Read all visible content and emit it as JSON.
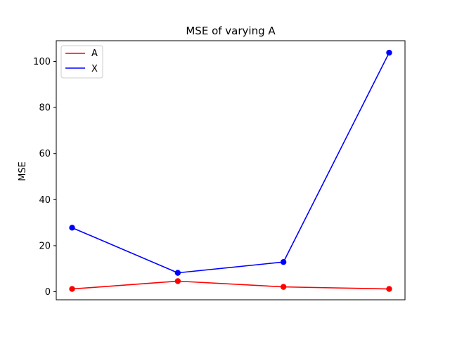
{
  "chart_data": {
    "type": "line",
    "title": "MSE of varying A",
    "xlabel": "",
    "ylabel": "MSE",
    "x": [
      0,
      1,
      2,
      3
    ],
    "xlim": [
      -0.15,
      3.15
    ],
    "ylim": [
      -3.5,
      109
    ],
    "yticks": [
      0,
      20,
      40,
      60,
      80,
      100
    ],
    "x_ticks_shown": false,
    "grid": false,
    "legend_position": "top-left",
    "series": [
      {
        "name": "A",
        "color": "#ff0000",
        "marker": "circle",
        "values": [
          1.2,
          4.6,
          2.1,
          1.2
        ]
      },
      {
        "name": "X",
        "color": "#0000ff",
        "marker": "circle",
        "values": [
          27.8,
          8.2,
          12.9,
          103.8
        ]
      }
    ]
  }
}
